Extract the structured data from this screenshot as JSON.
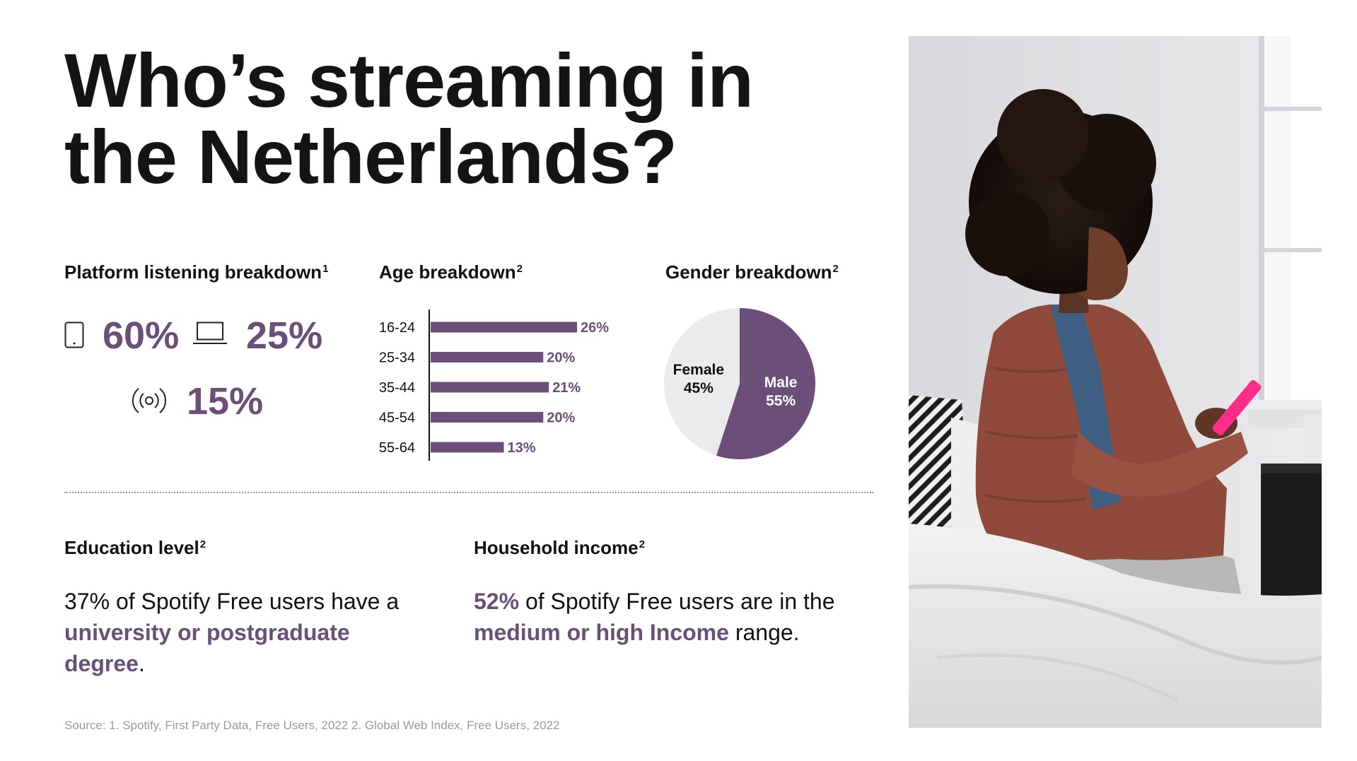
{
  "title": {
    "line1": "Who’s streaming in",
    "line2": "the Netherlands?"
  },
  "platform": {
    "heading": "Platform listening breakdown",
    "heading_sup": "1",
    "mobile_pct": "60%",
    "desktop_pct": "25%",
    "other_pct": "15%",
    "icons": [
      "mobile-icon",
      "laptop-icon",
      "speaker-icon"
    ]
  },
  "age": {
    "heading": "Age breakdown",
    "heading_sup": "2"
  },
  "gender": {
    "heading": "Gender breakdown",
    "heading_sup": "2",
    "female_label": "Female",
    "female_pct": "45%",
    "male_label": "Male",
    "male_pct": "55%"
  },
  "education": {
    "heading": "Education level",
    "heading_sup": "2",
    "text_before": "37% of Spotify Free users have a ",
    "highlight": "university or postgraduate degree",
    "text_after": "."
  },
  "income": {
    "heading": "Household income",
    "heading_sup": "2",
    "highlight_pct": "52%",
    "text_mid": " of Spotify Free users are in the ",
    "highlight": "medium or high Income",
    "text_after": " range."
  },
  "source": "Source: 1. Spotify, First Party Data, Free Users, 2022 2. Global Web Index, Free Users, 2022",
  "colors": {
    "accent": "#6b4f79",
    "pie_light": "#ebebeb",
    "divider": "#9a9a9a"
  },
  "chart_data": [
    {
      "type": "bar",
      "orientation": "horizontal",
      "categories": [
        "16-24",
        "25-34",
        "35-44",
        "45-54",
        "55-64"
      ],
      "values": [
        26,
        20,
        21,
        20,
        13
      ],
      "value_labels": [
        "26%",
        "20%",
        "21%",
        "20%",
        "13%"
      ],
      "title": "Age breakdown",
      "unit": "%",
      "xlim": [
        0,
        26
      ],
      "grid": false,
      "color": "#6b4f79"
    },
    {
      "type": "pie",
      "categories": [
        "Male",
        "Female"
      ],
      "values": [
        55,
        45
      ],
      "value_labels": [
        "55%",
        "45%"
      ],
      "title": "Gender breakdown",
      "colors": [
        "#6b4f79",
        "#ebebeb"
      ]
    }
  ]
}
